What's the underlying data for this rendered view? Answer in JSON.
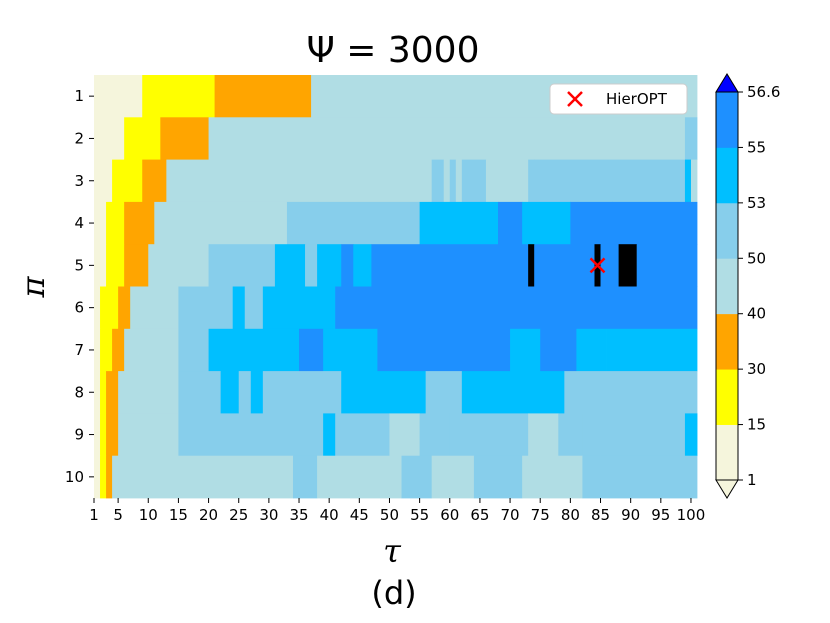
{
  "chart_data": {
    "type": "heatmap",
    "title": "Ψ = 3000",
    "xlabel": "τ",
    "ylabel": "π",
    "caption": "(d)",
    "x_range": [
      1,
      100
    ],
    "x_ticks": [
      1,
      5,
      10,
      15,
      20,
      25,
      30,
      35,
      40,
      45,
      50,
      55,
      60,
      65,
      70,
      75,
      80,
      85,
      90,
      95,
      100
    ],
    "y_ticks": [
      1,
      2,
      3,
      4,
      5,
      6,
      7,
      8,
      9,
      10
    ],
    "colorbar": {
      "boundaries": [
        1,
        15,
        30,
        40,
        50,
        53,
        55,
        56.6
      ],
      "tick_labels": [
        "1",
        "15",
        "30",
        "40",
        "50",
        "53",
        "55",
        "56.6"
      ],
      "colors": [
        "#f5f5dc",
        "#ffff00",
        "#ffa500",
        "#b0dde4",
        "#87ceeb",
        "#00bfff",
        "#1e90ff"
      ],
      "under_color": "#f5f5dc",
      "over_color": "#0000ff",
      "extend": "both"
    },
    "rows": [
      {
        "pi": 1,
        "runs": [
          [
            1,
            9,
            0
          ],
          [
            9,
            21,
            1
          ],
          [
            21,
            37,
            2
          ],
          [
            37,
            101,
            3
          ]
        ]
      },
      {
        "pi": 2,
        "runs": [
          [
            1,
            6,
            0
          ],
          [
            6,
            12,
            1
          ],
          [
            12,
            20,
            2
          ],
          [
            20,
            99,
            3
          ],
          [
            99,
            101,
            4
          ]
        ]
      },
      {
        "pi": 3,
        "runs": [
          [
            1,
            4,
            0
          ],
          [
            4,
            9,
            1
          ],
          [
            9,
            13,
            2
          ],
          [
            13,
            57,
            3
          ],
          [
            57,
            59,
            4
          ],
          [
            59,
            60,
            3
          ],
          [
            60,
            61,
            4
          ],
          [
            61,
            62,
            3
          ],
          [
            62,
            66,
            4
          ],
          [
            66,
            73,
            3
          ],
          [
            73,
            74,
            4
          ],
          [
            74,
            99,
            4
          ],
          [
            99,
            100,
            5
          ],
          [
            100,
            101,
            3
          ]
        ]
      },
      {
        "pi": 4,
        "runs": [
          [
            1,
            3,
            0
          ],
          [
            3,
            6,
            1
          ],
          [
            6,
            11,
            2
          ],
          [
            11,
            33,
            3
          ],
          [
            33,
            55,
            4
          ],
          [
            55,
            68,
            5
          ],
          [
            68,
            72,
            6
          ],
          [
            72,
            80,
            5
          ],
          [
            80,
            87,
            6
          ],
          [
            87,
            101,
            6
          ]
        ]
      },
      {
        "pi": 5,
        "runs": [
          [
            1,
            3,
            0
          ],
          [
            3,
            6,
            1
          ],
          [
            6,
            10,
            2
          ],
          [
            10,
            20,
            3
          ],
          [
            20,
            31,
            4
          ],
          [
            31,
            36,
            5
          ],
          [
            36,
            38,
            4
          ],
          [
            38,
            42,
            5
          ],
          [
            42,
            44,
            6
          ],
          [
            44,
            47,
            5
          ],
          [
            47,
            55,
            6
          ],
          [
            55,
            73,
            6
          ],
          [
            73,
            74,
            7
          ],
          [
            74,
            84,
            6
          ],
          [
            84,
            85,
            7
          ],
          [
            85,
            88,
            6
          ],
          [
            88,
            91,
            7
          ],
          [
            91,
            101,
            6
          ]
        ]
      },
      {
        "pi": 6,
        "runs": [
          [
            1,
            2,
            0
          ],
          [
            2,
            5,
            1
          ],
          [
            5,
            7,
            2
          ],
          [
            7,
            15,
            3
          ],
          [
            15,
            24,
            4
          ],
          [
            24,
            26,
            5
          ],
          [
            26,
            29,
            4
          ],
          [
            29,
            41,
            5
          ],
          [
            41,
            59,
            6
          ],
          [
            59,
            73,
            6
          ],
          [
            73,
            101,
            6
          ]
        ]
      },
      {
        "pi": 7,
        "runs": [
          [
            1,
            2,
            0
          ],
          [
            2,
            4,
            1
          ],
          [
            4,
            6,
            2
          ],
          [
            6,
            15,
            3
          ],
          [
            15,
            20,
            4
          ],
          [
            20,
            35,
            5
          ],
          [
            35,
            39,
            6
          ],
          [
            39,
            48,
            5
          ],
          [
            48,
            55,
            6
          ],
          [
            55,
            70,
            6
          ],
          [
            70,
            75,
            5
          ],
          [
            75,
            81,
            6
          ],
          [
            81,
            86,
            5
          ],
          [
            86,
            101,
            5
          ]
        ]
      },
      {
        "pi": 8,
        "runs": [
          [
            1,
            2,
            0
          ],
          [
            2,
            3,
            1
          ],
          [
            3,
            5,
            2
          ],
          [
            5,
            15,
            3
          ],
          [
            15,
            22,
            4
          ],
          [
            22,
            25,
            5
          ],
          [
            25,
            27,
            4
          ],
          [
            27,
            29,
            5
          ],
          [
            29,
            42,
            4
          ],
          [
            42,
            56,
            5
          ],
          [
            56,
            62,
            4
          ],
          [
            62,
            74,
            5
          ],
          [
            74,
            79,
            5
          ],
          [
            79,
            101,
            4
          ]
        ]
      },
      {
        "pi": 9,
        "runs": [
          [
            1,
            2,
            0
          ],
          [
            2,
            3,
            1
          ],
          [
            3,
            5,
            2
          ],
          [
            5,
            15,
            3
          ],
          [
            15,
            39,
            4
          ],
          [
            39,
            41,
            5
          ],
          [
            41,
            50,
            4
          ],
          [
            50,
            55,
            3
          ],
          [
            55,
            60,
            4
          ],
          [
            60,
            73,
            4
          ],
          [
            73,
            78,
            3
          ],
          [
            78,
            82,
            4
          ],
          [
            82,
            101,
            4
          ],
          [
            99,
            101,
            5
          ]
        ]
      },
      {
        "pi": 10,
        "runs": [
          [
            1,
            2,
            0
          ],
          [
            2,
            3,
            1
          ],
          [
            3,
            4,
            2
          ],
          [
            4,
            34,
            3
          ],
          [
            34,
            38,
            4
          ],
          [
            38,
            52,
            3
          ],
          [
            52,
            57,
            4
          ],
          [
            57,
            64,
            3
          ],
          [
            64,
            72,
            4
          ],
          [
            72,
            82,
            3
          ],
          [
            82,
            85,
            4
          ],
          [
            85,
            101,
            4
          ]
        ]
      }
    ],
    "markers": [
      {
        "label": "HierOPT",
        "x": 84,
        "y": 5,
        "symbol": "x",
        "color": "#ff0000"
      }
    ],
    "legend": {
      "entries": [
        "HierOPT"
      ],
      "placement": "top-right"
    }
  }
}
